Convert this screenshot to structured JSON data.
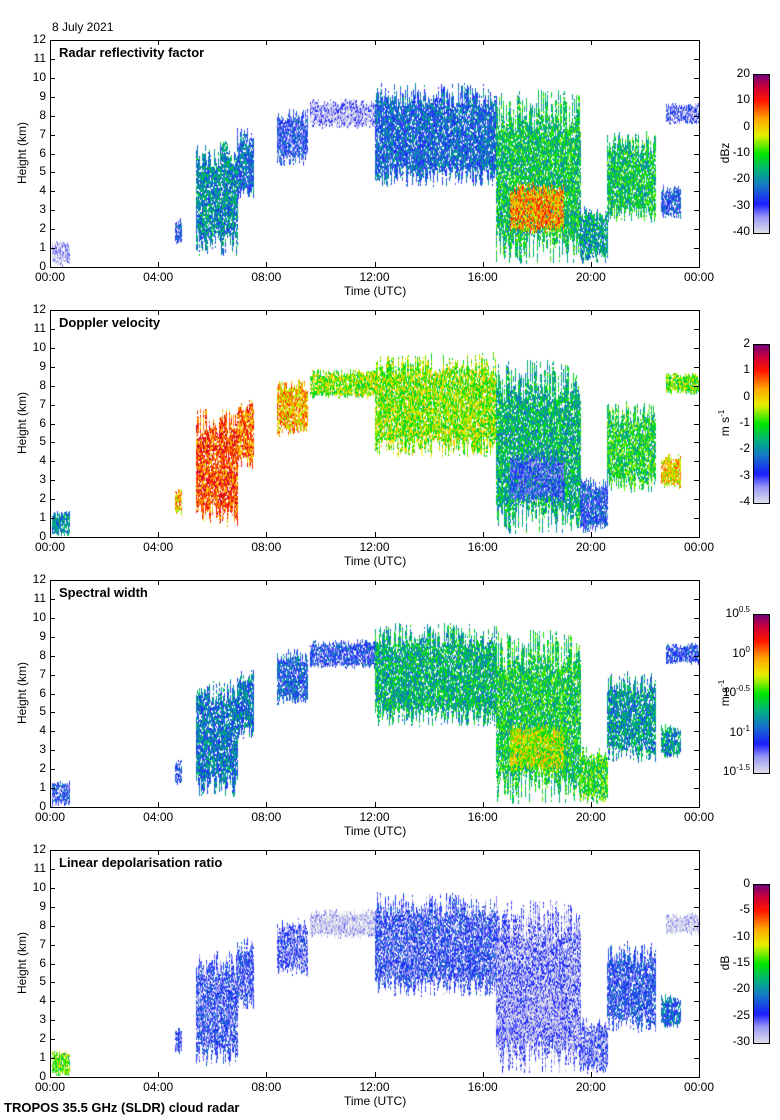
{
  "date": "8 July 2021",
  "footer": "TROPOS 35.5 GHz (SLDR) cloud radar",
  "chart_data": [
    {
      "type": "heatmap",
      "title": "Radar reflectivity factor",
      "xlabel": "Time (UTC)",
      "ylabel": "Height (km)",
      "xlim": [
        0,
        24
      ],
      "ylim": [
        0,
        12
      ],
      "xticks": [
        "00:00",
        "04:00",
        "08:00",
        "12:00",
        "16:00",
        "20:00",
        "00:00"
      ],
      "yticks": [
        "0",
        "1",
        "2",
        "3",
        "4",
        "5",
        "6",
        "7",
        "8",
        "9",
        "10",
        "11",
        "12"
      ],
      "colorbar": {
        "label": "dBz",
        "range": [
          -40,
          20
        ],
        "ticks": [
          "20",
          "10",
          "0",
          "-10",
          "-20",
          "-30",
          "-40"
        ]
      },
      "field": "reflectivity"
    },
    {
      "type": "heatmap",
      "title": "Doppler velocity",
      "xlabel": "Time (UTC)",
      "ylabel": "Height (km)",
      "xlim": [
        0,
        24
      ],
      "ylim": [
        0,
        12
      ],
      "xticks": [
        "00:00",
        "04:00",
        "08:00",
        "12:00",
        "16:00",
        "20:00",
        "00:00"
      ],
      "yticks": [
        "0",
        "1",
        "2",
        "3",
        "4",
        "5",
        "6",
        "7",
        "8",
        "9",
        "10",
        "11",
        "12"
      ],
      "colorbar": {
        "label": "m s-1",
        "range": [
          -4,
          2
        ],
        "ticks": [
          "2",
          "1",
          "0",
          "-1",
          "-2",
          "-3",
          "-4"
        ]
      },
      "field": "velocity"
    },
    {
      "type": "heatmap",
      "title": "Spectral width",
      "xlabel": "Time (UTC)",
      "ylabel": "Height (km)",
      "xlim": [
        0,
        24
      ],
      "ylim": [
        0,
        12
      ],
      "xticks": [
        "00:00",
        "04:00",
        "08:00",
        "12:00",
        "16:00",
        "20:00",
        "00:00"
      ],
      "yticks": [
        "0",
        "1",
        "2",
        "3",
        "4",
        "5",
        "6",
        "7",
        "8",
        "9",
        "10",
        "11",
        "12"
      ],
      "colorbar": {
        "label": "m s-1",
        "range_log10": [
          -1.5,
          0.5
        ],
        "ticks": [
          "10^0.5",
          "10^0",
          "10^-0.5",
          "10^-1",
          "10^-1.5"
        ]
      },
      "field": "width"
    },
    {
      "type": "heatmap",
      "title": "Linear depolarisation ratio",
      "xlabel": "Time (UTC)",
      "ylabel": "Height (km)",
      "xlim": [
        0,
        24
      ],
      "ylim": [
        0,
        12
      ],
      "xticks": [
        "00:00",
        "04:00",
        "08:00",
        "12:00",
        "16:00",
        "20:00",
        "00:00"
      ],
      "yticks": [
        "0",
        "1",
        "2",
        "3",
        "4",
        "5",
        "6",
        "7",
        "8",
        "9",
        "10",
        "11",
        "12"
      ],
      "colorbar": {
        "label": "dB",
        "range": [
          -30,
          0
        ],
        "ticks": [
          "0",
          "-5",
          "-10",
          "-15",
          "-20",
          "-25",
          "-30"
        ]
      },
      "field": "ldr"
    }
  ],
  "cloud_features": [
    {
      "t0": 0.05,
      "t1": 0.7,
      "h0": 0.1,
      "h1": 1.4,
      "dbz": -38,
      "vel": -2,
      "wid": -1.1,
      "ldr": -14
    },
    {
      "t0": 4.6,
      "t1": 4.85,
      "h0": 1.2,
      "h1": 2.6,
      "dbz": -28,
      "vel": 0.2,
      "wid": -1.1,
      "ldr": -25
    },
    {
      "t0": 5.4,
      "t1": 6.9,
      "h0": 0.6,
      "h1": 6.8,
      "dbz": -20,
      "vel": 0.8,
      "wid": -0.9,
      "ldr": -25
    },
    {
      "t0": 6.9,
      "t1": 7.5,
      "h0": 3.6,
      "h1": 7.4,
      "dbz": -24,
      "vel": 0.6,
      "wid": -0.9,
      "ldr": -25
    },
    {
      "t0": 8.4,
      "t1": 9.5,
      "h0": 5.4,
      "h1": 8.4,
      "dbz": -28,
      "vel": 0.2,
      "wid": -1.0,
      "ldr": -26
    },
    {
      "t0": 9.6,
      "t1": 12.1,
      "h0": 7.4,
      "h1": 8.9,
      "dbz": -36,
      "vel": -0.6,
      "wid": -1.1,
      "ldr": -30
    },
    {
      "t0": 12.0,
      "t1": 16.5,
      "h0": 4.3,
      "h1": 9.8,
      "dbz": -24,
      "vel": -0.6,
      "wid": -0.7,
      "ldr": -25
    },
    {
      "t0": 16.5,
      "t1": 19.6,
      "h0": 0.2,
      "h1": 9.4,
      "dbz": -14,
      "vel": -1.6,
      "wid": -0.6,
      "ldr": -27
    },
    {
      "t0": 17.0,
      "t1": 19.0,
      "h0": 1.8,
      "h1": 4.5,
      "dbz": 4,
      "vel": -2.8,
      "wid": -0.3,
      "ldr": -28
    },
    {
      "t0": 19.6,
      "t1": 20.6,
      "h0": 0.2,
      "h1": 3.2,
      "dbz": -18,
      "vel": -2.6,
      "wid": -0.5,
      "ldr": -26
    },
    {
      "t0": 20.6,
      "t1": 22.4,
      "h0": 2.4,
      "h1": 7.2,
      "dbz": -14,
      "vel": -1.2,
      "wid": -0.8,
      "ldr": -24
    },
    {
      "t0": 22.6,
      "t1": 23.3,
      "h0": 2.6,
      "h1": 4.4,
      "dbz": -26,
      "vel": 0.0,
      "wid": -0.8,
      "ldr": -22
    },
    {
      "t0": 22.8,
      "t1": 24.0,
      "h0": 7.6,
      "h1": 8.7,
      "dbz": -32,
      "vel": -0.8,
      "wid": -1.1,
      "ldr": -30
    }
  ]
}
